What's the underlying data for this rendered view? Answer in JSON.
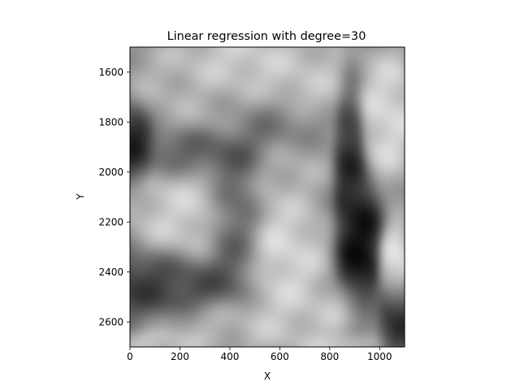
{
  "chart_data": {
    "type": "heatmap",
    "title": "Linear regression with degree=30",
    "xlabel": "X",
    "ylabel": "Y",
    "xlim": [
      0,
      1100
    ],
    "ylim": [
      2700,
      1500
    ],
    "y_inverted": true,
    "colormap": "gray",
    "grid": false,
    "x_ticks": [
      {
        "value": 0,
        "label": "0"
      },
      {
        "value": 200,
        "label": "200"
      },
      {
        "value": 400,
        "label": "400"
      },
      {
        "value": 600,
        "label": "600"
      },
      {
        "value": 800,
        "label": "800"
      },
      {
        "value": 1000,
        "label": "1000"
      }
    ],
    "y_ticks": [
      {
        "value": 1600,
        "label": "1600"
      },
      {
        "value": 1800,
        "label": "1800"
      },
      {
        "value": 2000,
        "label": "2000"
      },
      {
        "value": 2200,
        "label": "2200"
      },
      {
        "value": 2400,
        "label": "2400"
      },
      {
        "value": 2600,
        "label": "2600"
      }
    ],
    "blobs": [
      {
        "x": 420,
        "y": 1560,
        "sx": 140,
        "sy": 70,
        "v": 0.85
      },
      {
        "x": 700,
        "y": 1640,
        "sx": 120,
        "sy": 90,
        "v": 0.8
      },
      {
        "x": 180,
        "y": 1650,
        "sx": 110,
        "sy": 90,
        "v": 0.72
      },
      {
        "x": 330,
        "y": 1760,
        "sx": 110,
        "sy": 70,
        "v": 0.7
      },
      {
        "x": 1030,
        "y": 1780,
        "sx": 60,
        "sy": 140,
        "v": 0.9
      },
      {
        "x": 230,
        "y": 2170,
        "sx": 120,
        "sy": 130,
        "v": 0.85
      },
      {
        "x": 590,
        "y": 2360,
        "sx": 100,
        "sy": 160,
        "v": 0.9
      },
      {
        "x": 640,
        "y": 1980,
        "sx": 80,
        "sy": 90,
        "v": 0.72
      },
      {
        "x": 1060,
        "y": 2380,
        "sx": 35,
        "sy": 90,
        "v": 0.95
      },
      {
        "x": 480,
        "y": 2600,
        "sx": 170,
        "sy": 60,
        "v": 0.78
      },
      {
        "x": 850,
        "y": 2560,
        "sx": 90,
        "sy": 60,
        "v": 0.8
      },
      {
        "x": 850,
        "y": 2690,
        "sx": 70,
        "sy": 30,
        "v": 0.88
      },
      {
        "x": 130,
        "y": 2690,
        "sx": 80,
        "sy": 30,
        "v": 0.82
      },
      {
        "x": 20,
        "y": 1880,
        "sx": 40,
        "sy": 80,
        "v": 0.05
      },
      {
        "x": 920,
        "y": 2330,
        "sx": 45,
        "sy": 170,
        "v": 0.0
      },
      {
        "x": 880,
        "y": 1930,
        "sx": 30,
        "sy": 170,
        "v": 0.12
      },
      {
        "x": 290,
        "y": 1920,
        "sx": 140,
        "sy": 60,
        "v": 0.28
      },
      {
        "x": 420,
        "y": 2250,
        "sx": 60,
        "sy": 170,
        "v": 0.22
      },
      {
        "x": 140,
        "y": 2440,
        "sx": 180,
        "sy": 70,
        "v": 0.18
      },
      {
        "x": 1060,
        "y": 2560,
        "sx": 40,
        "sy": 70,
        "v": 0.05
      },
      {
        "x": 560,
        "y": 1820,
        "sx": 110,
        "sy": 60,
        "v": 0.4
      }
    ]
  }
}
